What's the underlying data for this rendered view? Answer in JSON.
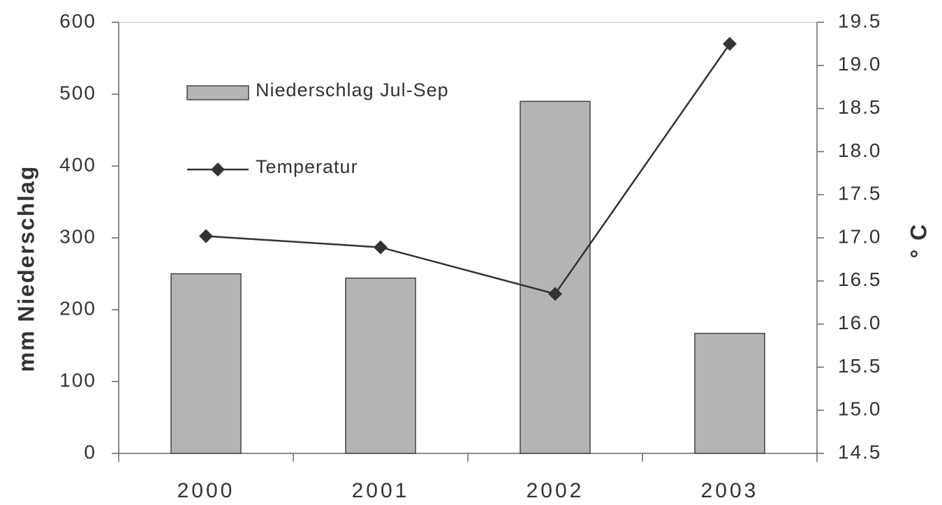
{
  "chart_data": {
    "type": "bar_line",
    "y_label": "mm Niederschlag",
    "y2_label": "° C",
    "categories": [
      "2000",
      "2001",
      "2002",
      "2003"
    ],
    "series": [
      {
        "name": "Niederschlag Jul-Sep",
        "type": "bar",
        "color": "#b4b4b4",
        "values": [
          250,
          244,
          490,
          167
        ]
      },
      {
        "name": "Temperatur",
        "type": "line",
        "axis": "y2",
        "color": "#333333",
        "values": [
          17.02,
          16.89,
          16.35,
          19.25
        ]
      }
    ],
    "ylim": [
      0,
      600
    ],
    "yticks": [
      0,
      100,
      200,
      300,
      400,
      500,
      600
    ],
    "y2lim": [
      14.5,
      19.5
    ],
    "y2ticks": [
      14.5,
      {
        "value": 15,
        "label": "15.0"
      },
      15.5,
      {
        "value": 16,
        "label": "16.0"
      },
      16.5,
      {
        "value": 17,
        "label": "17.0"
      },
      17.5,
      {
        "value": 18,
        "label": "18.0"
      },
      18.5,
      {
        "value": 19,
        "label": "19.0"
      },
      19.5
    ],
    "legend": "upper left",
    "grid": false
  }
}
